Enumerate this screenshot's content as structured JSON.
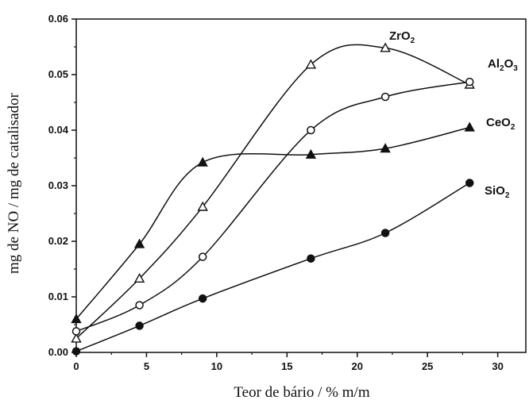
{
  "chart_data": {
    "type": "line",
    "xlabel": "Teor de bário / % m/m",
    "ylabel": "mg de NO / mg de catalisador",
    "xlim": [
      0,
      32
    ],
    "ylim": [
      0,
      0.06
    ],
    "x_ticks": [
      "0",
      "5",
      "10",
      "15",
      "20",
      "25",
      "30"
    ],
    "y_ticks": [
      "0.00",
      "0.01",
      "0.02",
      "0.03",
      "0.04",
      "0.05",
      "0.06"
    ],
    "grid": false,
    "legend": "labels next to each curve at the right",
    "series": [
      {
        "name": "ZrO2",
        "label_main": "ZrO",
        "label_sub": "2",
        "marker": "open-triangle",
        "x": [
          0,
          4.5,
          9,
          16.7,
          22,
          28
        ],
        "y": [
          0.0025,
          0.0133,
          0.0262,
          0.0518,
          0.0548,
          0.0482
        ]
      },
      {
        "name": "Al2O3",
        "label_main": "Al",
        "label_sub": "2",
        "label_main2": "O",
        "label_sub2": "3",
        "marker": "open-circle",
        "x": [
          0,
          4.5,
          9,
          16.7,
          22,
          28
        ],
        "y": [
          0.0038,
          0.0085,
          0.0172,
          0.04,
          0.046,
          0.0487
        ]
      },
      {
        "name": "CeO2",
        "label_main": "CeO",
        "label_sub": "2",
        "marker": "filled-triangle",
        "x": [
          0,
          4.5,
          9,
          16.7,
          22,
          28
        ],
        "y": [
          0.006,
          0.0195,
          0.0342,
          0.0356,
          0.0367,
          0.0405
        ]
      },
      {
        "name": "SiO2",
        "label_main": "SiO",
        "label_sub": "2",
        "marker": "filled-circle",
        "x": [
          0,
          4.5,
          9,
          16.7,
          22,
          28
        ],
        "y": [
          0.0002,
          0.0048,
          0.0097,
          0.0169,
          0.0215,
          0.0305
        ]
      }
    ]
  }
}
